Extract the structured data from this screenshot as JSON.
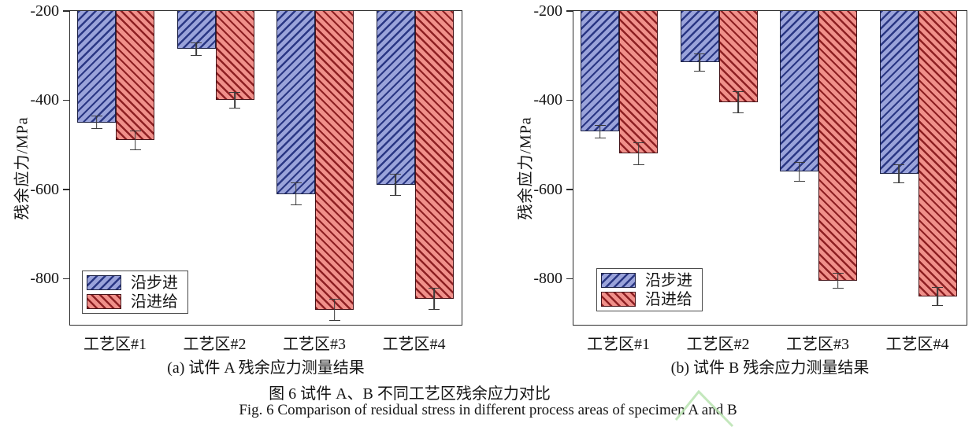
{
  "figure": {
    "caption_cn": "图 6  试件 A、B 不同工艺区残余应力对比",
    "caption_en": "Fig. 6 Comparison of residual stress in different process areas of specimen A and B"
  },
  "watermark": {
    "color": "#b9e3b0"
  },
  "chart_data": [
    {
      "id": "a",
      "type": "bar",
      "title": "(a)  试件 A 残余应力测量结果",
      "ylabel": "残余应力/MPa",
      "categories": [
        "工艺区#1",
        "工艺区#2",
        "工艺区#3",
        "工艺区#4"
      ],
      "yticks": [
        -200,
        -400,
        -600,
        -800
      ],
      "ylim": [
        -200,
        -907
      ],
      "grid": false,
      "legend_position": "lower-left",
      "series": [
        {
          "name": "沿步进",
          "hatch_dir": "/",
          "fill": "#9aa3da",
          "hatch": "#2a3784",
          "edge": "#1d2244",
          "values": [
            -450,
            -285,
            -610,
            -590
          ],
          "errors": [
            15,
            15,
            25,
            25
          ]
        },
        {
          "name": "沿进给",
          "hatch_dir": "\\",
          "fill": "#f0908a",
          "hatch": "#8e2023",
          "edge": "#45151a",
          "values": [
            -490,
            -400,
            -870,
            -845
          ],
          "errors": [
            22,
            18,
            25,
            25
          ]
        }
      ]
    },
    {
      "id": "b",
      "type": "bar",
      "title": "(b)  试件 B 残余应力测量结果",
      "ylabel": "残余应力/MPa",
      "categories": [
        "工艺区#1",
        "工艺区#2",
        "工艺区#3",
        "工艺区#4"
      ],
      "yticks": [
        -200,
        -400,
        -600,
        -800
      ],
      "ylim": [
        -200,
        -907
      ],
      "grid": false,
      "legend_position": "lower-left",
      "series": [
        {
          "name": "沿步进",
          "hatch_dir": "/",
          "fill": "#9aa3da",
          "hatch": "#2a3784",
          "edge": "#1d2244",
          "values": [
            -470,
            -315,
            -560,
            -565
          ],
          "errors": [
            15,
            20,
            22,
            22
          ]
        },
        {
          "name": "沿进给",
          "hatch_dir": "\\",
          "fill": "#f0908a",
          "hatch": "#8e2023",
          "edge": "#45151a",
          "values": [
            -520,
            -405,
            -805,
            -840
          ],
          "errors": [
            25,
            25,
            18,
            22
          ]
        }
      ]
    }
  ]
}
